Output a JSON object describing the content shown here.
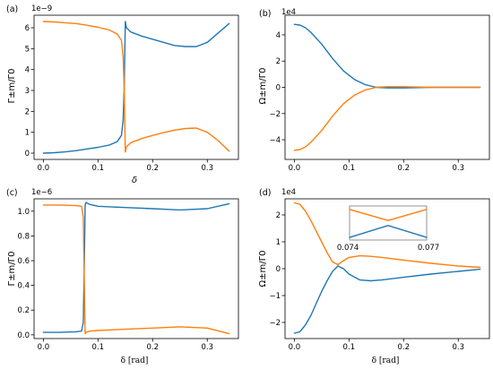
{
  "colors": {
    "series_blue": "#1f77b4",
    "series_orange": "#ff7f0e",
    "inset_frame": "#888888"
  },
  "chart_data": [
    {
      "panel": "(a)",
      "type": "line",
      "offset_text": "1e−9",
      "ylabel": "Γ±m/Γ0",
      "xlabel": "δ",
      "xlim": [
        -0.017,
        0.357
      ],
      "ylim": [
        -0.3,
        6.6
      ],
      "xticks": [
        0.0,
        0.1,
        0.2,
        0.3
      ],
      "xtick_labels": [
        "0.0",
        "0.1",
        "0.2",
        "0.3"
      ],
      "yticks": [
        0,
        1,
        2,
        3,
        4,
        5,
        6
      ],
      "ytick_labels": [
        "0",
        "1",
        "2",
        "3",
        "4",
        "5",
        "6"
      ],
      "grid": false,
      "series": [
        {
          "color": "#1f77b4",
          "x": [
            0.0,
            0.02,
            0.04,
            0.06,
            0.08,
            0.1,
            0.12,
            0.135,
            0.143,
            0.146,
            0.148,
            0.15,
            0.152,
            0.16,
            0.18,
            0.2,
            0.22,
            0.24,
            0.26,
            0.28,
            0.3,
            0.32,
            0.34
          ],
          "y": [
            0.0,
            0.02,
            0.06,
            0.12,
            0.2,
            0.28,
            0.38,
            0.55,
            0.85,
            1.6,
            3.2,
            6.3,
            6.0,
            5.8,
            5.6,
            5.45,
            5.3,
            5.15,
            5.1,
            5.1,
            5.3,
            5.75,
            6.2
          ]
        },
        {
          "color": "#ff7f0e",
          "x": [
            0.0,
            0.02,
            0.04,
            0.06,
            0.08,
            0.1,
            0.12,
            0.135,
            0.143,
            0.146,
            0.148,
            0.15,
            0.152,
            0.16,
            0.18,
            0.2,
            0.22,
            0.24,
            0.26,
            0.28,
            0.3,
            0.32,
            0.34
          ],
          "y": [
            6.3,
            6.28,
            6.24,
            6.2,
            6.12,
            6.02,
            5.9,
            5.7,
            5.4,
            4.6,
            3.0,
            0.05,
            0.3,
            0.5,
            0.7,
            0.85,
            0.98,
            1.1,
            1.18,
            1.2,
            1.0,
            0.6,
            0.1
          ]
        }
      ]
    },
    {
      "panel": "(b)",
      "type": "line",
      "offset_text": "1e4",
      "ylabel": "Ω±m/Γ0",
      "xlabel": "",
      "xlim": [
        -0.017,
        0.357
      ],
      "ylim": [
        -5.5,
        5.5
      ],
      "xticks": [
        0.0,
        0.1,
        0.2,
        0.3
      ],
      "xtick_labels": [
        "0.0",
        "0.1",
        "0.2",
        "0.3"
      ],
      "yticks": [
        -4,
        -2,
        0,
        2,
        4
      ],
      "ytick_labels": [
        "−4",
        "−2",
        "0",
        "2",
        "4"
      ],
      "grid": false,
      "series": [
        {
          "color": "#1f77b4",
          "x": [
            0.0,
            0.01,
            0.02,
            0.03,
            0.05,
            0.07,
            0.09,
            0.11,
            0.13,
            0.15,
            0.17,
            0.2,
            0.25,
            0.3,
            0.34
          ],
          "y": [
            4.8,
            4.75,
            4.55,
            4.2,
            3.3,
            2.2,
            1.25,
            0.6,
            0.2,
            0.0,
            -0.05,
            -0.05,
            0.0,
            0.0,
            0.0
          ]
        },
        {
          "color": "#ff7f0e",
          "x": [
            0.0,
            0.01,
            0.02,
            0.03,
            0.05,
            0.07,
            0.09,
            0.11,
            0.13,
            0.15,
            0.17,
            0.2,
            0.25,
            0.3,
            0.34
          ],
          "y": [
            -4.8,
            -4.75,
            -4.55,
            -4.2,
            -3.3,
            -2.2,
            -1.25,
            -0.6,
            -0.2,
            0.0,
            0.05,
            0.05,
            0.0,
            0.0,
            0.0
          ]
        }
      ]
    },
    {
      "panel": "(c)",
      "type": "line",
      "offset_text": "1e−6",
      "ylabel": "Γ±m/Γ0",
      "xlabel": "δ [rad]",
      "xlim": [
        -0.017,
        0.357
      ],
      "ylim": [
        -0.03,
        1.1
      ],
      "xticks": [
        0.0,
        0.1,
        0.2,
        0.3
      ],
      "xtick_labels": [
        "0.0",
        "0.1",
        "0.2",
        "0.3"
      ],
      "yticks": [
        0.0,
        0.2,
        0.4,
        0.6,
        0.8,
        1.0
      ],
      "ytick_labels": [
        "0.0",
        "0.2",
        "0.4",
        "0.6",
        "0.8",
        "1.0"
      ],
      "grid": false,
      "series": [
        {
          "color": "#1f77b4",
          "x": [
            0.0,
            0.03,
            0.06,
            0.07,
            0.073,
            0.075,
            0.0765,
            0.078,
            0.085,
            0.1,
            0.15,
            0.2,
            0.25,
            0.3,
            0.34
          ],
          "y": [
            0.02,
            0.02,
            0.025,
            0.03,
            0.1,
            0.6,
            1.05,
            1.07,
            1.055,
            1.04,
            1.03,
            1.02,
            1.01,
            1.02,
            1.06
          ]
        },
        {
          "color": "#ff7f0e",
          "x": [
            0.0,
            0.03,
            0.06,
            0.07,
            0.073,
            0.075,
            0.0765,
            0.078,
            0.085,
            0.1,
            0.15,
            0.2,
            0.25,
            0.3,
            0.34
          ],
          "y": [
            1.05,
            1.05,
            1.045,
            1.04,
            0.95,
            0.4,
            0.01,
            0.02,
            0.03,
            0.035,
            0.045,
            0.055,
            0.065,
            0.055,
            0.01
          ]
        }
      ]
    },
    {
      "panel": "(d)",
      "type": "line",
      "offset_text": "1e4",
      "ylabel": "Ω±m/Γ0",
      "xlabel": "δ [rad]",
      "xlim": [
        -0.017,
        0.357
      ],
      "ylim": [
        -2.6,
        2.6
      ],
      "xticks": [
        0.0,
        0.1,
        0.2,
        0.3
      ],
      "xtick_labels": [
        "0.0",
        "0.1",
        "0.2",
        "0.3"
      ],
      "yticks": [
        -2,
        -1,
        0,
        1,
        2
      ],
      "ytick_labels": [
        "−2",
        "−1",
        "0",
        "1",
        "2"
      ],
      "grid": false,
      "series": [
        {
          "color": "#1f77b4",
          "x": [
            0.0,
            0.01,
            0.02,
            0.03,
            0.04,
            0.05,
            0.06,
            0.07,
            0.08,
            0.09,
            0.1,
            0.12,
            0.14,
            0.16,
            0.2,
            0.25,
            0.3,
            0.34
          ],
          "y": [
            -2.4,
            -2.35,
            -2.1,
            -1.75,
            -1.3,
            -0.85,
            -0.45,
            -0.1,
            0.1,
            0.0,
            -0.2,
            -0.42,
            -0.45,
            -0.42,
            -0.32,
            -0.2,
            -0.1,
            -0.02
          ]
        },
        {
          "color": "#ff7f0e",
          "x": [
            0.0,
            0.01,
            0.02,
            0.03,
            0.04,
            0.05,
            0.06,
            0.07,
            0.08,
            0.09,
            0.1,
            0.12,
            0.14,
            0.16,
            0.2,
            0.25,
            0.3,
            0.34
          ],
          "y": [
            2.45,
            2.4,
            2.15,
            1.8,
            1.4,
            1.0,
            0.6,
            0.25,
            0.15,
            0.3,
            0.42,
            0.48,
            0.46,
            0.42,
            0.32,
            0.2,
            0.1,
            0.05
          ]
        }
      ],
      "inset": {
        "xlim": [
          0.074,
          0.077
        ],
        "xtick_labels": [
          "0.074",
          "0.077"
        ],
        "series": [
          {
            "color": "#ff7f0e",
            "x": [
              0.074,
              0.0755,
              0.077
            ],
            "y": [
              0.8,
              0.15,
              0.8
            ]
          },
          {
            "color": "#1f77b4",
            "x": [
              0.074,
              0.0755,
              0.077
            ],
            "y": [
              -0.85,
              -0.15,
              -0.85
            ]
          }
        ],
        "ylim": [
          -1.0,
          1.0
        ]
      }
    }
  ]
}
